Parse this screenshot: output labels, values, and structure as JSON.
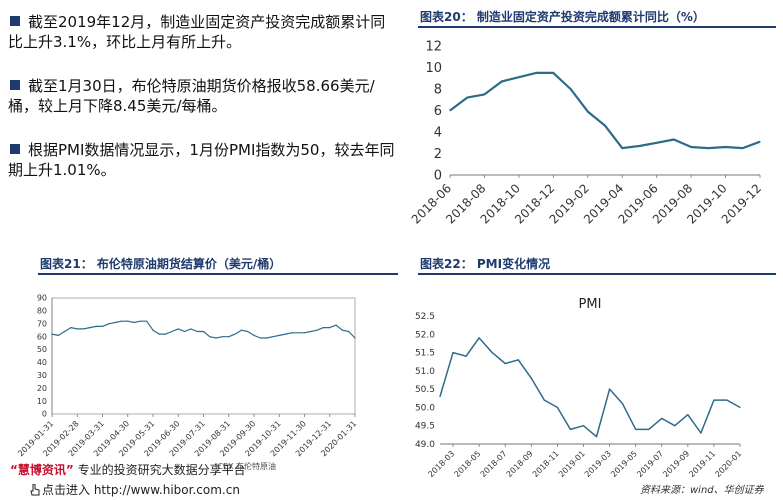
{
  "bullets": [
    "截至2019年12月，制造业固定资产投资完成额累计同比上升3.1%，环比上月有所上升。",
    "截至1月30日，布伦特原油期货价格报收58.66美元/桶，较上月下降8.45美元/每桶。",
    "根据PMI数据情况显示，1月份PMI指数为50，较去年同期上升1.01%。"
  ],
  "titles": {
    "chart20": "图表20：  制造业固定资产投资完成额累计同比（%）",
    "chart21": "图表21：  布伦特原油期货结算价（美元/桶）",
    "chart22": "图表22：  PMI变化情况"
  },
  "footer": {
    "brand": "“慧博资讯”",
    "brand_tail": " 专业的投资研究大数据分享平台",
    "link": "点击进入 http://www.hibor.com.cn",
    "source": "资料来源：wind、华创证券",
    "watermark": "ICEX 布伦特原油"
  },
  "colors": {
    "line": "#2e6b8a",
    "accent": "#1e3a6e",
    "brand": "#c8102e"
  },
  "chart_data": [
    {
      "id": "chart20",
      "type": "line",
      "x": [
        "2018-06",
        "2018-07",
        "2018-08",
        "2018-09",
        "2018-10",
        "2018-11",
        "2018-12",
        "2019-01",
        "2019-02",
        "2019-03",
        "2019-04",
        "2019-05",
        "2019-06",
        "2019-07",
        "2019-08",
        "2019-09",
        "2019-10",
        "2019-11",
        "2019-12"
      ],
      "y": [
        6.0,
        7.2,
        7.5,
        8.7,
        9.1,
        9.5,
        9.5,
        8.0,
        5.9,
        4.6,
        2.5,
        2.7,
        3.0,
        3.3,
        2.6,
        2.5,
        2.6,
        2.5,
        3.1
      ],
      "ylim": [
        0,
        12
      ],
      "yticks": [
        0,
        2,
        4,
        6,
        8,
        10,
        12
      ],
      "xticklabels": [
        "2018-06",
        "2018-08",
        "2018-10",
        "2018-12",
        "2019-02",
        "2019-04",
        "2019-06",
        "2019-08",
        "2019-10",
        "2019-12"
      ],
      "grid": false
    },
    {
      "id": "chart21",
      "type": "line",
      "x": [
        "2019-01-31",
        "2019-02-07",
        "2019-02-14",
        "2019-02-21",
        "2019-02-28",
        "2019-03-07",
        "2019-03-14",
        "2019-03-21",
        "2019-03-31",
        "2019-04-07",
        "2019-04-14",
        "2019-04-21",
        "2019-04-30",
        "2019-05-07",
        "2019-05-14",
        "2019-05-21",
        "2019-05-31",
        "2019-06-07",
        "2019-06-14",
        "2019-06-21",
        "2019-06-30",
        "2019-07-07",
        "2019-07-14",
        "2019-07-21",
        "2019-07-31",
        "2019-08-07",
        "2019-08-14",
        "2019-08-21",
        "2019-08-31",
        "2019-09-07",
        "2019-09-14",
        "2019-09-21",
        "2019-09-30",
        "2019-10-07",
        "2019-10-14",
        "2019-10-21",
        "2019-10-31",
        "2019-11-07",
        "2019-11-14",
        "2019-11-21",
        "2019-11-30",
        "2019-12-07",
        "2019-12-14",
        "2019-12-21",
        "2019-12-31",
        "2020-01-07",
        "2020-01-14",
        "2020-01-21",
        "2020-01-31"
      ],
      "y": [
        62,
        61,
        64,
        67,
        66,
        66,
        67,
        68,
        68,
        70,
        71,
        72,
        72,
        71,
        72,
        72,
        65,
        62,
        62,
        64,
        66,
        64,
        66,
        64,
        64,
        60,
        59,
        60,
        60,
        62,
        65,
        64,
        61,
        59,
        59,
        60,
        61,
        62,
        63,
        63,
        63,
        64,
        65,
        67,
        67,
        69,
        65,
        64,
        59
      ],
      "ylim": [
        0,
        90
      ],
      "yticks": [
        0,
        10,
        20,
        30,
        40,
        50,
        60,
        70,
        80,
        90
      ],
      "xticklabels": [
        "2019-01-31",
        "2019-02-28",
        "2019-03-31",
        "2019-04-30",
        "2019-05-31",
        "2019-06-30",
        "2019-07-31",
        "2019-08-31",
        "2019-09-30",
        "2019-10-31",
        "2019-11-30",
        "2019-12-31",
        "2020-01-31"
      ],
      "grid": false
    },
    {
      "id": "chart22",
      "type": "line",
      "title": "PMI",
      "x": [
        "2018-02",
        "2018-03",
        "2018-04",
        "2018-05",
        "2018-06",
        "2018-07",
        "2018-08",
        "2018-09",
        "2018-10",
        "2018-11",
        "2018-12",
        "2019-01",
        "2019-02",
        "2019-03",
        "2019-04",
        "2019-05",
        "2019-06",
        "2019-07",
        "2019-08",
        "2019-09",
        "2019-10",
        "2019-11",
        "2019-12",
        "2020-01"
      ],
      "y": [
        50.3,
        51.5,
        51.4,
        51.9,
        51.5,
        51.2,
        51.3,
        50.8,
        50.2,
        50.0,
        49.4,
        49.5,
        49.2,
        50.5,
        50.1,
        49.4,
        49.4,
        49.7,
        49.5,
        49.8,
        49.3,
        50.2,
        50.2,
        50.0
      ],
      "ylim": [
        49.0,
        52.5
      ],
      "yticks": [
        49.0,
        49.5,
        50.0,
        50.5,
        51.0,
        51.5,
        52.0,
        52.5
      ],
      "xticklabels": [
        "2018-03",
        "2018-05",
        "2018-07",
        "2018-09",
        "2018-11",
        "2019-01",
        "2019-03",
        "2019-05",
        "2019-07",
        "2019-09",
        "2019-11",
        "2020-01"
      ],
      "grid": false
    }
  ]
}
